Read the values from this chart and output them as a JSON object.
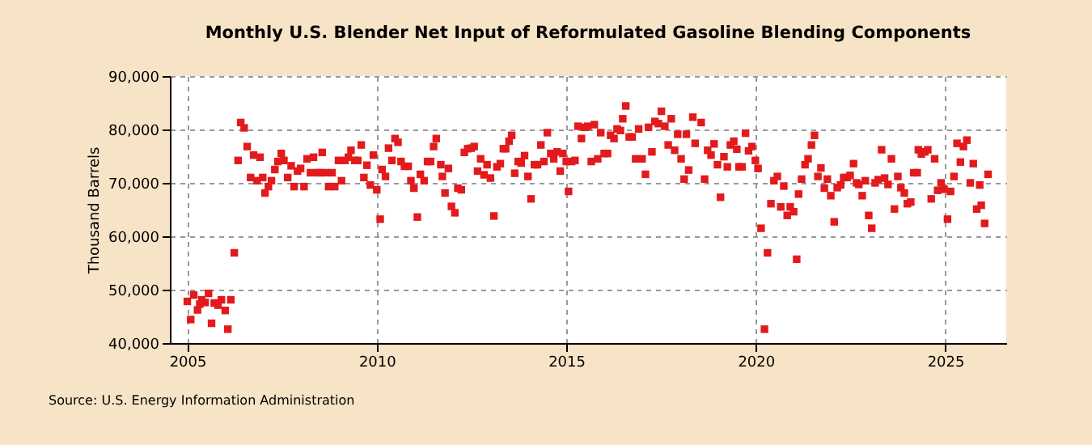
{
  "chart_data": {
    "type": "scatter",
    "title": "Monthly U.S. Blender Net Input of Reformulated Gasoline Blending Components",
    "ylabel": "Thousand Barrels",
    "annotations": [
      "Source: U.S. Energy Information Administration"
    ],
    "x": [
      2005.0,
      2005.09,
      2005.17,
      2005.27,
      2005.33,
      2005.38,
      2005.47,
      2005.56,
      2005.64,
      2005.71,
      2005.81,
      2005.9,
      2006.0,
      2006.07,
      2006.15,
      2006.24,
      2006.34,
      2006.41,
      2006.5,
      2006.58,
      2006.67,
      2006.75,
      2006.84,
      2006.92,
      2006.99,
      2007.05,
      2007.14,
      2007.22,
      2007.31,
      2007.39,
      2007.48,
      2007.55,
      2007.65,
      2007.74,
      2007.82,
      2007.91,
      2007.99,
      2008.08,
      2008.16,
      2008.25,
      2008.33,
      2008.42,
      2008.5,
      2008.56,
      2008.65,
      2008.73,
      2008.82,
      2008.89,
      2008.99,
      2009.07,
      2009.16,
      2009.25,
      2009.32,
      2009.42,
      2009.5,
      2009.59,
      2009.66,
      2009.74,
      2009.83,
      2009.91,
      2010.0,
      2010.09,
      2010.14,
      2010.23,
      2010.31,
      2010.4,
      2010.48,
      2010.56,
      2010.64,
      2010.73,
      2010.83,
      2010.9,
      2010.98,
      2011.07,
      2011.15,
      2011.25,
      2011.34,
      2011.42,
      2011.5,
      2011.57,
      2011.69,
      2011.73,
      2011.8,
      2011.89,
      2011.97,
      2012.06,
      2012.14,
      2012.23,
      2012.31,
      2012.4,
      2012.49,
      2012.57,
      2012.66,
      2012.74,
      2012.83,
      2012.91,
      2013.0,
      2013.09,
      2013.17,
      2013.26,
      2013.34,
      2013.4,
      2013.49,
      2013.56,
      2013.64,
      2013.73,
      2013.81,
      2013.9,
      2013.99,
      2014.07,
      2014.16,
      2014.24,
      2014.33,
      2014.41,
      2014.5,
      2014.59,
      2014.67,
      2014.76,
      2014.84,
      2014.91,
      2015.0,
      2015.06,
      2015.14,
      2015.23,
      2015.31,
      2015.4,
      2015.49,
      2015.57,
      2015.66,
      2015.74,
      2015.83,
      2015.91,
      2016.0,
      2016.09,
      2016.17,
      2016.26,
      2016.34,
      2016.43,
      2016.49,
      2016.57,
      2016.66,
      2016.74,
      2016.83,
      2016.91,
      2017.0,
      2017.09,
      2017.17,
      2017.26,
      2017.34,
      2017.43,
      2017.51,
      2017.6,
      2017.69,
      2017.77,
      2017.86,
      2017.94,
      2018.03,
      2018.11,
      2018.17,
      2018.23,
      2018.34,
      2018.4,
      2018.56,
      2018.65,
      2018.73,
      2018.82,
      2018.9,
      2018.99,
      2019.07,
      2019.16,
      2019.25,
      2019.33,
      2019.42,
      2019.5,
      2019.56,
      2019.64,
      2019.73,
      2019.81,
      2019.9,
      2019.99,
      2020.06,
      2020.14,
      2020.23,
      2020.31,
      2020.4,
      2020.48,
      2020.57,
      2020.66,
      2020.74,
      2020.83,
      2020.91,
      2021.0,
      2021.08,
      2021.13,
      2021.21,
      2021.3,
      2021.38,
      2021.47,
      2021.55,
      2021.64,
      2021.72,
      2021.81,
      2021.89,
      2021.98,
      2022.07,
      2022.15,
      2022.24,
      2022.32,
      2022.41,
      2022.49,
      2022.58,
      2022.66,
      2022.72,
      2022.81,
      2022.89,
      2022.98,
      2023.06,
      2023.15,
      2023.23,
      2023.32,
      2023.4,
      2023.49,
      2023.58,
      2023.66,
      2023.75,
      2023.83,
      2023.92,
      2024.0,
      2024.09,
      2024.17,
      2024.26,
      2024.29,
      2024.37,
      2024.46,
      2024.54,
      2024.63,
      2024.72,
      2024.8,
      2024.89,
      2024.97,
      2025.06,
      2025.14,
      2025.23,
      2025.31,
      2025.4,
      2025.48,
      2025.57,
      2025.66,
      2025.74,
      2025.83,
      2025.91,
      2025.95,
      2026.04,
      2026.13
    ],
    "series": [
      {
        "color": "#e31a1c",
        "values": [
          47800,
          44400,
          49000,
          46200,
          47300,
          48100,
          47600,
          49300,
          43700,
          47500,
          47100,
          48100,
          46100,
          42600,
          48100,
          56900,
          74200,
          81300,
          80300,
          76800,
          71000,
          75200,
          70400,
          74800,
          71000,
          68100,
          69300,
          70400,
          72500,
          74000,
          75500,
          74200,
          71000,
          73200,
          69300,
          72200,
          72700,
          69300,
          74500,
          71900,
          74800,
          71900,
          71900,
          75700,
          71900,
          69300,
          71900,
          69300,
          74200,
          70400,
          74200,
          74800,
          76100,
          74200,
          74200,
          77100,
          71000,
          73300,
          69600,
          75200,
          68700,
          63200,
          72500,
          71200,
          76500,
          74200,
          78300,
          77600,
          74000,
          73100,
          73100,
          70400,
          69000,
          63600,
          71600,
          70400,
          74000,
          74000,
          76800,
          78300,
          73400,
          71200,
          68100,
          72700,
          65600,
          64400,
          69000,
          68700,
          75700,
          76400,
          76500,
          76800,
          72200,
          74500,
          71500,
          73400,
          70900,
          63800,
          73000,
          73600,
          76400,
          76400,
          77800,
          78900,
          71800,
          74000,
          73700,
          75100,
          71200,
          67000,
          73400,
          73400,
          77100,
          74000,
          79400,
          75500,
          74500,
          75800,
          72200,
          75500,
          74000,
          68400,
          74000,
          74200,
          80600,
          78300,
          80400,
          80600,
          74000,
          80900,
          74500,
          79400,
          75500,
          75500,
          78900,
          78300,
          80100,
          79800,
          82000,
          84400,
          78600,
          78600,
          74500,
          80100,
          74500,
          71600,
          80400,
          75800,
          81500,
          81100,
          83400,
          80600,
          77100,
          82000,
          76100,
          79100,
          74500,
          70700,
          79100,
          72400,
          82300,
          77400,
          81300,
          70700,
          76100,
          75200,
          77300,
          73400,
          67300,
          74900,
          73000,
          77100,
          77800,
          76300,
          73000,
          73000,
          79300,
          76000,
          76800,
          74200,
          72700,
          61500,
          42600,
          56900,
          66100,
          70400,
          71200,
          65500,
          69400,
          63900,
          65500,
          64600,
          55700,
          67900,
          70700,
          73400,
          74500,
          77100,
          78900,
          71200,
          72800,
          69000,
          70700,
          67600,
          62700,
          69100,
          69600,
          71000,
          71000,
          71400,
          73600,
          70000,
          69700,
          67600,
          70400,
          63900,
          61500,
          70000,
          70600,
          76200,
          70900,
          69700,
          74500,
          65100,
          71200,
          69100,
          68100,
          66100,
          66400,
          71900,
          71900,
          76200,
          75400,
          75800,
          76200,
          67000,
          74500,
          68600,
          70000,
          68800,
          63200,
          68400,
          71200,
          77400,
          73900,
          76800,
          78000,
          70000,
          73600,
          65100,
          69600,
          65800,
          62400,
          71600
        ]
      }
    ],
    "xlim": [
      2004.54,
      2026.61
    ],
    "xticks": [
      2005,
      2010,
      2015,
      2020,
      2025
    ],
    "ylim": [
      40000,
      90000
    ],
    "yticks": [
      {
        "value": 40000,
        "label": "40,000"
      },
      {
        "value": 50000,
        "label": "50,000"
      },
      {
        "value": 60000,
        "label": "60,000"
      },
      {
        "value": 70000,
        "label": "70,000"
      },
      {
        "value": 80000,
        "label": "80,000"
      },
      {
        "value": 90000,
        "label": "90,000"
      }
    ],
    "grid": true,
    "marker": "square"
  }
}
